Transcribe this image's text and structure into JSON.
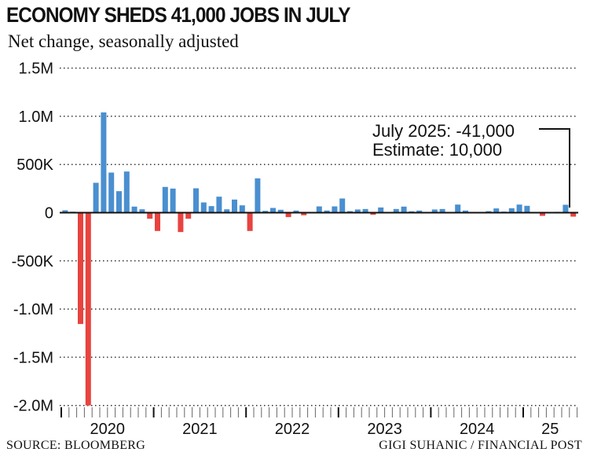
{
  "title": "ECONOMY SHEDS 41,000 JOBS IN JULY",
  "subtitle": "Net change, seasonally adjusted",
  "source": "SOURCE: BLOOMBERG",
  "credit": "GIGI SUHANIC / FINANCIAL POST",
  "annotation": {
    "line1": "July 2025: -41,000",
    "line2": "Estimate: 10,000"
  },
  "colors": {
    "positive": "#4a8fd0",
    "negative": "#e8433f"
  },
  "chart_data": {
    "type": "bar",
    "title": "ECONOMY SHEDS 41,000 JOBS IN JULY",
    "subtitle": "Net change, seasonally adjusted",
    "ylim": [
      -2000000,
      1500000
    ],
    "yticks": [
      1500000,
      1000000,
      500000,
      0,
      -500000,
      -1000000,
      -1500000,
      -2000000
    ],
    "ytick_labels": [
      "1.5M",
      "1.0M",
      "500K",
      "0",
      "-500K",
      "-1.0M",
      "-1.5M",
      "-2.0M"
    ],
    "x_labels": [
      {
        "label": "2020",
        "start_index": 0,
        "months": 12
      },
      {
        "label": "2021",
        "start_index": 12,
        "months": 12
      },
      {
        "label": "2022",
        "start_index": 24,
        "months": 12
      },
      {
        "label": "2023",
        "start_index": 36,
        "months": 12
      },
      {
        "label": "2024",
        "start_index": 48,
        "months": 12
      },
      {
        "label": "25",
        "start_index": 60,
        "months": 7
      }
    ],
    "grid": true,
    "values": [
      25000,
      10000,
      -1155000,
      -2000000,
      310000,
      1040000,
      416000,
      223000,
      427000,
      63000,
      35000,
      -63000,
      -190000,
      267000,
      250000,
      -201000,
      -63000,
      253000,
      106000,
      68000,
      166000,
      35000,
      136000,
      76000,
      -190000,
      356000,
      19000,
      49000,
      30000,
      -46000,
      22000,
      -27000,
      8000,
      65000,
      22000,
      65000,
      147000,
      16000,
      33000,
      38000,
      -22000,
      54000,
      -6000,
      38000,
      63000,
      14000,
      22000,
      0,
      33000,
      38000,
      -2000,
      84000,
      22000,
      -1000,
      -2000,
      16000,
      44000,
      11000,
      46000,
      84000,
      71000,
      1000,
      -33000,
      7000,
      9000,
      82000,
      -41000
    ]
  }
}
